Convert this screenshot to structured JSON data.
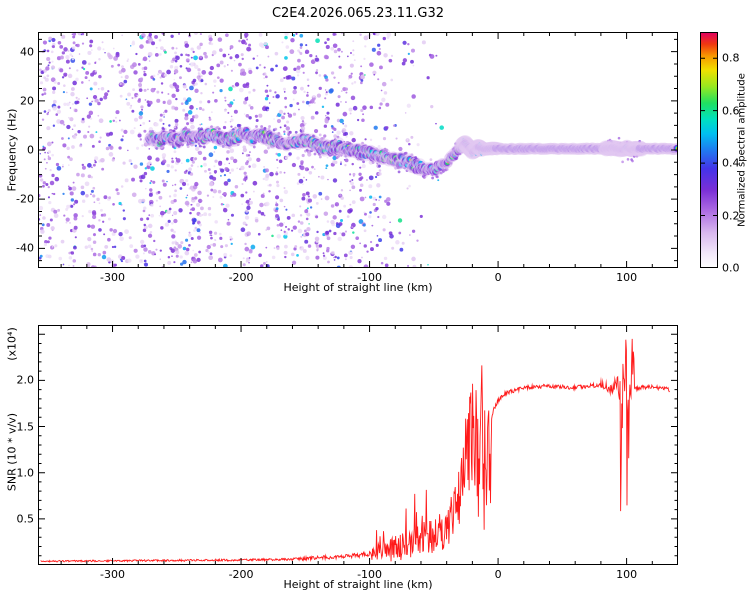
{
  "title": "C2E4.2026.065.23.11.G32",
  "colors": {
    "background": "#ffffff",
    "axis": "#000000",
    "snr_line": "#ff1a1a"
  },
  "colormap": {
    "stops": [
      [
        0.0,
        "#ffffff"
      ],
      [
        0.06,
        "#f2e8fa"
      ],
      [
        0.15,
        "#d8b6ee"
      ],
      [
        0.25,
        "#a865e2"
      ],
      [
        0.33,
        "#7a2fd6"
      ],
      [
        0.42,
        "#4433e8"
      ],
      [
        0.5,
        "#1f7bf0"
      ],
      [
        0.57,
        "#00c0f0"
      ],
      [
        0.63,
        "#00e0c0"
      ],
      [
        0.7,
        "#20e060"
      ],
      [
        0.77,
        "#98e820"
      ],
      [
        0.84,
        "#f0e000"
      ],
      [
        0.9,
        "#f89800"
      ],
      [
        0.95,
        "#f03810"
      ],
      [
        1.0,
        "#e00060"
      ]
    ]
  },
  "chart_data": [
    {
      "type": "heatmap",
      "title": "C2E4.2026.065.23.11.G32",
      "xlabel": "Height of straight line (km)",
      "ylabel": "Frequency (Hz)",
      "xlim": [
        -358,
        140
      ],
      "ylim": [
        -48,
        48
      ],
      "xticks": [
        "-300",
        "-200",
        "-100",
        "0",
        "100"
      ],
      "yticks": [
        "40",
        "20",
        "0",
        "-20",
        "-40"
      ],
      "colorbar": {
        "label": "Normalized spectral amplitude",
        "ticks": [
          "0.0",
          "0.2",
          "0.4",
          "0.6",
          "0.8"
        ],
        "range": [
          0,
          0.9
        ]
      },
      "trace": {
        "start": -272,
        "blob_end": -28,
        "points": [
          [
            -272,
            5
          ],
          [
            -265,
            3.5
          ],
          [
            -258,
            5.5
          ],
          [
            -250,
            4
          ],
          [
            -243,
            6
          ],
          [
            -236,
            4.5
          ],
          [
            -228,
            5.5
          ],
          [
            -220,
            6
          ],
          [
            -212,
            4
          ],
          [
            -205,
            5
          ],
          [
            -198,
            6.5
          ],
          [
            -190,
            5
          ],
          [
            -183,
            6
          ],
          [
            -175,
            4
          ],
          [
            -168,
            3
          ],
          [
            -160,
            2.5
          ],
          [
            -152,
            4
          ],
          [
            -145,
            3
          ],
          [
            -138,
            1
          ],
          [
            -130,
            0.5
          ],
          [
            -122,
            1.5
          ],
          [
            -115,
            0
          ],
          [
            -108,
            -1
          ],
          [
            -100,
            -1.5
          ],
          [
            -93,
            -2.5
          ],
          [
            -85,
            -3
          ],
          [
            -78,
            -4
          ],
          [
            -70,
            -5
          ],
          [
            -63,
            -6.5
          ],
          [
            -55,
            -7.5
          ],
          [
            -48,
            -8
          ],
          [
            -43,
            -6
          ],
          [
            -38,
            -4
          ],
          [
            -33,
            -1
          ],
          [
            -29,
            1
          ],
          [
            -26,
            3
          ],
          [
            -23,
            1
          ],
          [
            -20,
            -0.5
          ],
          [
            -16,
            1
          ],
          [
            -12,
            0.5
          ],
          [
            0,
            0.5
          ],
          [
            20,
            0.5
          ],
          [
            40,
            0.5
          ],
          [
            60,
            0.5
          ],
          [
            80,
            0.5
          ],
          [
            90,
            0.8
          ],
          [
            96,
            0.2
          ],
          [
            100,
            1
          ],
          [
            104,
            0.3
          ],
          [
            110,
            0.5
          ],
          [
            140,
            0.5
          ]
        ],
        "disturbances": [
          [
            -28,
            -13
          ],
          [
            83,
            112
          ]
        ]
      },
      "noise": {
        "x_end": -40,
        "dense_until": -140,
        "base_density": 1.0
      }
    },
    {
      "type": "line",
      "xlabel": "Height of straight line (km)",
      "ylabel": "SNR (10 * v/v)",
      "scale_label": "(x10⁴)",
      "line_color": "#ff1a1a",
      "xlim": [
        -358,
        140
      ],
      "ylim": [
        0,
        2.6
      ],
      "xticks": [
        "-300",
        "-200",
        "-100",
        "0",
        "100"
      ],
      "yticks": [
        "0.5",
        "1.0",
        "1.5",
        "2.0"
      ],
      "points": [
        [
          -358,
          0.04
        ],
        [
          -300,
          0.045
        ],
        [
          -250,
          0.05
        ],
        [
          -200,
          0.055
        ],
        [
          -160,
          0.06
        ],
        [
          -140,
          0.08
        ],
        [
          -120,
          0.09
        ],
        [
          -100,
          0.12
        ],
        [
          -90,
          0.16
        ],
        [
          -80,
          0.2
        ],
        [
          -70,
          0.24
        ],
        [
          -60,
          0.28
        ],
        [
          -50,
          0.33
        ],
        [
          -45,
          0.38
        ],
        [
          -40,
          0.45
        ],
        [
          -35,
          0.55
        ],
        [
          -30,
          0.7
        ],
        [
          -27,
          0.9
        ],
        [
          -24,
          1.2
        ],
        [
          -21,
          1.6
        ],
        [
          -19,
          1.1
        ],
        [
          -17,
          1.4
        ],
        [
          -15,
          1.2
        ],
        [
          -13,
          1.5
        ],
        [
          -11,
          1.3
        ],
        [
          -9,
          1.55
        ],
        [
          -7,
          1.4
        ],
        [
          -5,
          1.6
        ],
        [
          -3,
          1.7
        ],
        [
          0,
          1.78
        ],
        [
          5,
          1.85
        ],
        [
          10,
          1.88
        ],
        [
          20,
          1.92
        ],
        [
          30,
          1.93
        ],
        [
          40,
          1.94
        ],
        [
          50,
          1.93
        ],
        [
          60,
          1.92
        ],
        [
          70,
          1.94
        ],
        [
          80,
          1.95
        ],
        [
          88,
          1.9
        ],
        [
          93,
          2.0
        ],
        [
          96,
          1.5
        ],
        [
          99,
          2.15
        ],
        [
          101,
          1.4
        ],
        [
          103,
          1.95
        ],
        [
          106,
          1.9
        ],
        [
          110,
          1.92
        ],
        [
          120,
          1.93
        ],
        [
          133,
          1.9
        ]
      ],
      "volatility": [
        [
          -358,
          -160,
          0.2
        ],
        [
          -160,
          -100,
          0.25
        ],
        [
          -100,
          -60,
          0.6
        ],
        [
          -60,
          -35,
          0.6
        ],
        [
          -35,
          -5,
          0.5
        ],
        [
          -5,
          80,
          0.012
        ],
        [
          80,
          94,
          0.03
        ],
        [
          94,
          106,
          0.3
        ],
        [
          106,
          140,
          0.012
        ]
      ]
    }
  ]
}
